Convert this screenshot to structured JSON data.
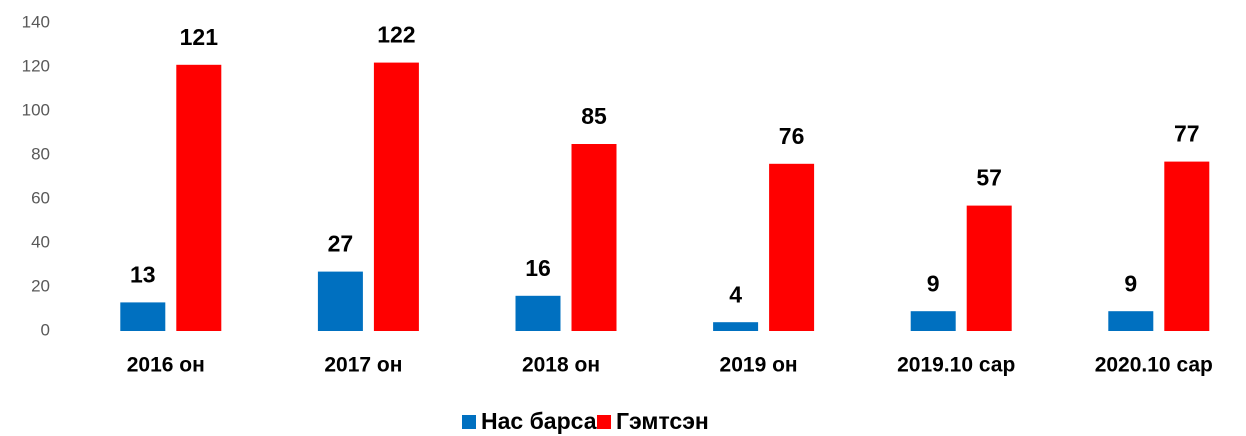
{
  "chart_data": {
    "type": "bar",
    "categories": [
      "2016 он",
      "2017 он",
      "2018 он",
      "2019 он",
      "2019.10 сар",
      "2020.10 сар"
    ],
    "series": [
      {
        "name": "Нас барсан",
        "color": "#0070c0",
        "values": [
          13,
          27,
          16,
          4,
          9,
          9
        ]
      },
      {
        "name": "Гэмтсэн",
        "color": "#ff0000",
        "values": [
          121,
          122,
          85,
          76,
          57,
          77
        ]
      }
    ],
    "ylim": [
      0,
      140
    ],
    "yticks": [
      0,
      20,
      40,
      60,
      80,
      100,
      120,
      140
    ],
    "grid": false,
    "legend": "bottom"
  }
}
